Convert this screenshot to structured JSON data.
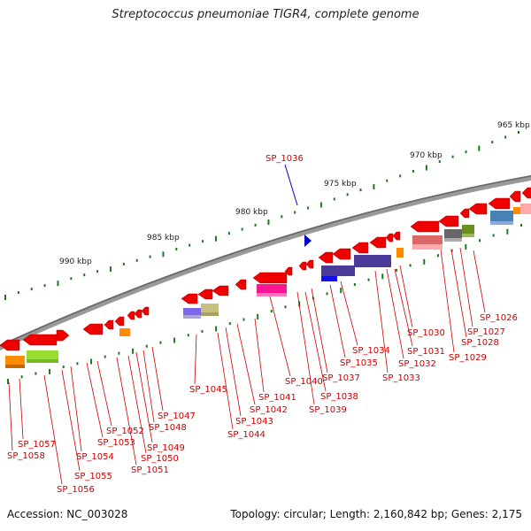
{
  "title": "Streptococcus pneumoniae TIGR4, complete genome",
  "accession": "Accession: NC_003028",
  "topology": "Topology: circular; Length: 2,160,842 bp; Genes: 2,175",
  "highlight": {
    "label": "SP_1036",
    "color": "#0000cc"
  },
  "colors": {
    "gene": "#ee0000",
    "label": "#cc0000",
    "backbone": "#888888",
    "tick": "#1a7a1a"
  },
  "ticks": [
    {
      "label": "965 kbp"
    },
    {
      "label": "970 kbp"
    },
    {
      "label": "975 kbp"
    },
    {
      "label": "980 kbp"
    },
    {
      "label": "985 kbp"
    },
    {
      "label": "990 kbp"
    }
  ],
  "genes": [
    "SP_1026",
    "SP_1027",
    "SP_1028",
    "SP_1029",
    "SP_1030",
    "SP_1031",
    "SP_1032",
    "SP_1033",
    "SP_1034",
    "SP_1035",
    "SP_1037",
    "SP_1038",
    "SP_1039",
    "SP_1040",
    "SP_1041",
    "SP_1042",
    "SP_1043",
    "SP_1044",
    "SP_1045",
    "SP_1047",
    "SP_1048",
    "SP_1049",
    "SP_1050",
    "SP_1051",
    "SP_1052",
    "SP_1053",
    "SP_1054",
    "SP_1055",
    "SP_1056",
    "SP_1057",
    "SP_1058"
  ]
}
